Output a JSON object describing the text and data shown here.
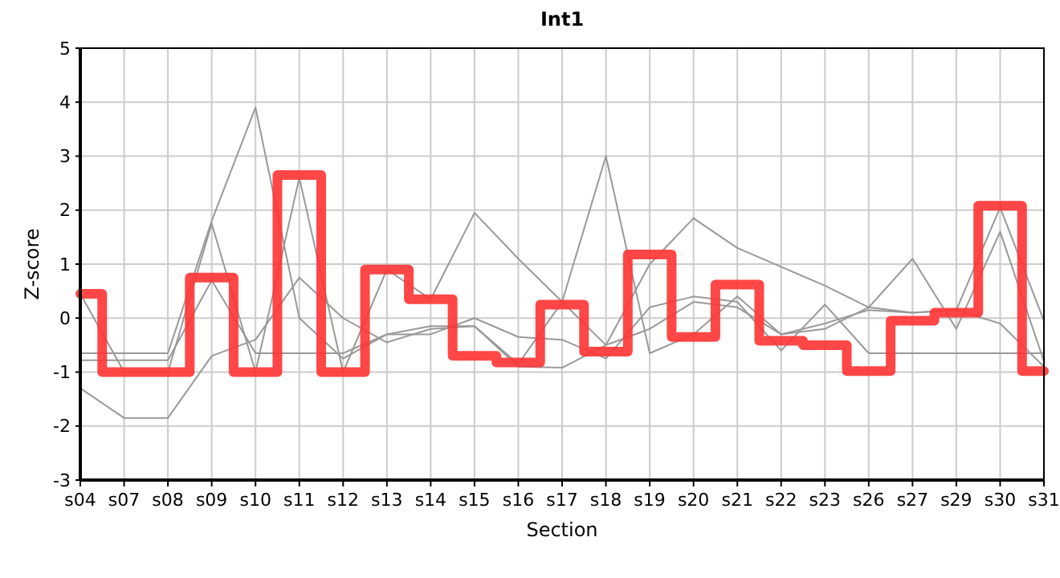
{
  "chart_data": {
    "type": "line",
    "title": "Int1",
    "xlabel": "Section",
    "ylabel": "Z-score",
    "categories": [
      "s04",
      "s07",
      "s08",
      "s09",
      "s10",
      "s11",
      "s12",
      "s13",
      "s14",
      "s15",
      "s16",
      "s17",
      "s18",
      "s19",
      "s20",
      "s21",
      "s22",
      "s23",
      "s26",
      "s27",
      "s29",
      "s30",
      "s31"
    ],
    "series": [
      {
        "color": "#999999",
        "values": [
          -0.65,
          -0.65,
          -0.65,
          1.8,
          3.9,
          0.0,
          -0.75,
          -0.3,
          -0.15,
          -0.15,
          -0.85,
          0.3,
          3.0,
          -0.65,
          -0.3,
          0.4,
          -0.3,
          -0.1,
          0.15,
          0.1,
          0.15,
          2.05,
          -0.05
        ]
      },
      {
        "color": "#999999",
        "values": [
          0.45,
          -1,
          -1,
          1.75,
          -1,
          2.6,
          -1,
          0.9,
          0.35,
          1.95,
          1.1,
          0.3,
          -0.5,
          1.0,
          1.85,
          1.3,
          0.95,
          0.6,
          0.2,
          1.1,
          -0.2,
          1.6,
          -0.8
        ]
      },
      {
        "color": "#999999",
        "values": [
          -0.78,
          -0.78,
          -0.78,
          0.7,
          -0.65,
          -0.65,
          -0.65,
          -0.3,
          -0.3,
          0,
          -0.35,
          -0.4,
          -0.75,
          0.2,
          0.4,
          0.3,
          -0.6,
          0.25,
          -0.65,
          -0.65,
          -0.65,
          -0.65,
          -0.65
        ]
      },
      {
        "color": "#999999",
        "values": [
          -1.3,
          -1.85,
          -1.85,
          -0.7,
          -0.4,
          0.75,
          0,
          -0.45,
          -0.2,
          -0.15,
          -0.9,
          -0.92,
          -0.5,
          -0.2,
          0.3,
          0.2,
          -0.3,
          -0.2,
          0.2,
          0.1,
          0.15,
          -0.1,
          -0.9
        ]
      },
      {
        "type": "step",
        "color": "#ff3333",
        "values": [
          0.45,
          -1,
          -1,
          0.75,
          -1,
          2.65,
          -1,
          0.9,
          0.35,
          -0.7,
          -0.82,
          0.25,
          -0.62,
          1.18,
          -0.35,
          0.62,
          -0.42,
          -0.5,
          -0.98,
          -0.05,
          0.1,
          2.08,
          -0.98
        ]
      }
    ],
    "ylim": [
      -3,
      5
    ],
    "yticks": [
      -3,
      -2,
      -1,
      0,
      1,
      2,
      3,
      4,
      5
    ],
    "grid": true,
    "line_style": "solid"
  }
}
